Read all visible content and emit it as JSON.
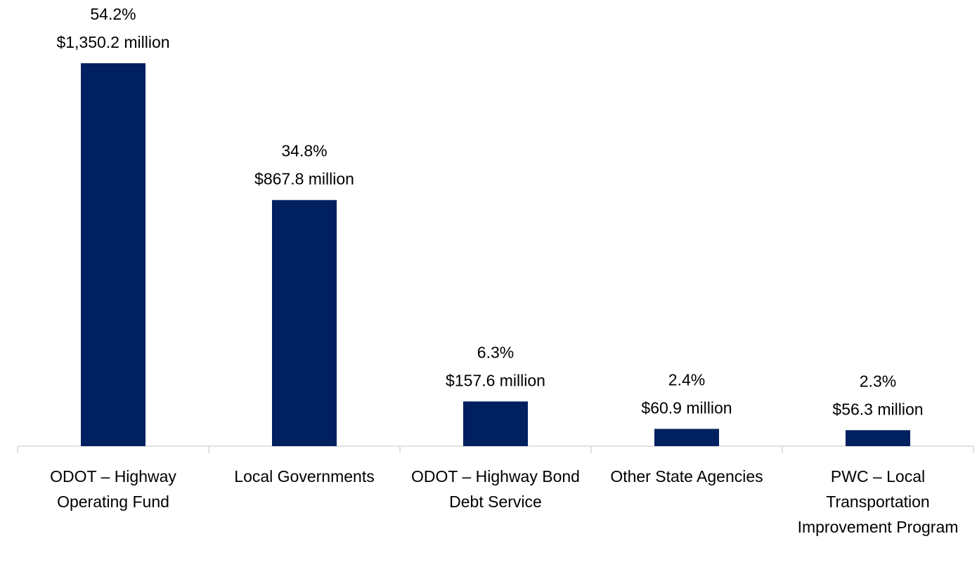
{
  "chart_data": {
    "type": "bar",
    "categories": [
      "ODOT – Highway Operating Fund",
      "Local Governments",
      "ODOT – Highway Bond Debt Service",
      "Other State Agencies",
      "PWC – Local Transportation Improvement Program"
    ],
    "values": [
      1350.2,
      867.8,
      157.6,
      60.9,
      56.3
    ],
    "value_labels": [
      "$1,350.2 million",
      "$867.8 million",
      "$157.6 million",
      "$60.9 million",
      "$56.3 million"
    ],
    "shares": [
      54.2,
      34.8,
      6.3,
      2.4,
      2.3
    ],
    "share_labels": [
      "54.2%",
      "34.8%",
      "6.3%",
      "2.4%",
      "2.3%"
    ],
    "color": "#002060"
  }
}
